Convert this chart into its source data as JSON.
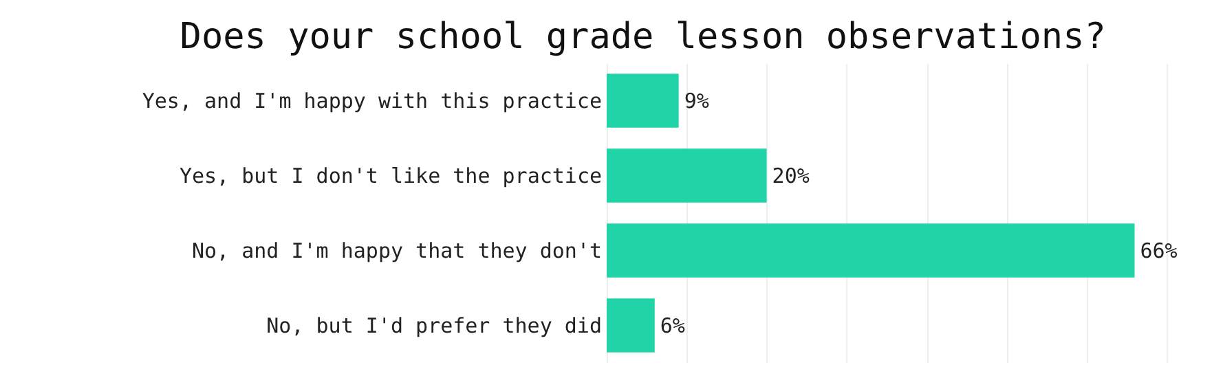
{
  "chart_data": {
    "type": "bar",
    "title": "Does your school grade lesson observations?",
    "orientation": "horizontal",
    "categories": [
      "Yes, and I'm happy with this practice",
      "Yes, but I don't like the practice",
      "No, and I'm happy that they don't",
      "No, but I'd prefer they did"
    ],
    "values": [
      9,
      20,
      66,
      6
    ],
    "color": "#21d4a7",
    "value_labels": [
      "9%",
      "20%",
      "66%",
      "6%"
    ],
    "xlim": [
      0,
      70
    ],
    "xticks": [
      {
        "value": 0,
        "label": null
      },
      {
        "value": 10,
        "label": null
      },
      {
        "value": 20,
        "label": null
      },
      {
        "value": 30,
        "label": null
      },
      {
        "value": 40,
        "label": null
      },
      {
        "value": 50,
        "label": null
      },
      {
        "value": 60,
        "label": null
      },
      {
        "value": 70,
        "label": null
      }
    ],
    "grid": "x",
    "tick_labels": "y"
  }
}
